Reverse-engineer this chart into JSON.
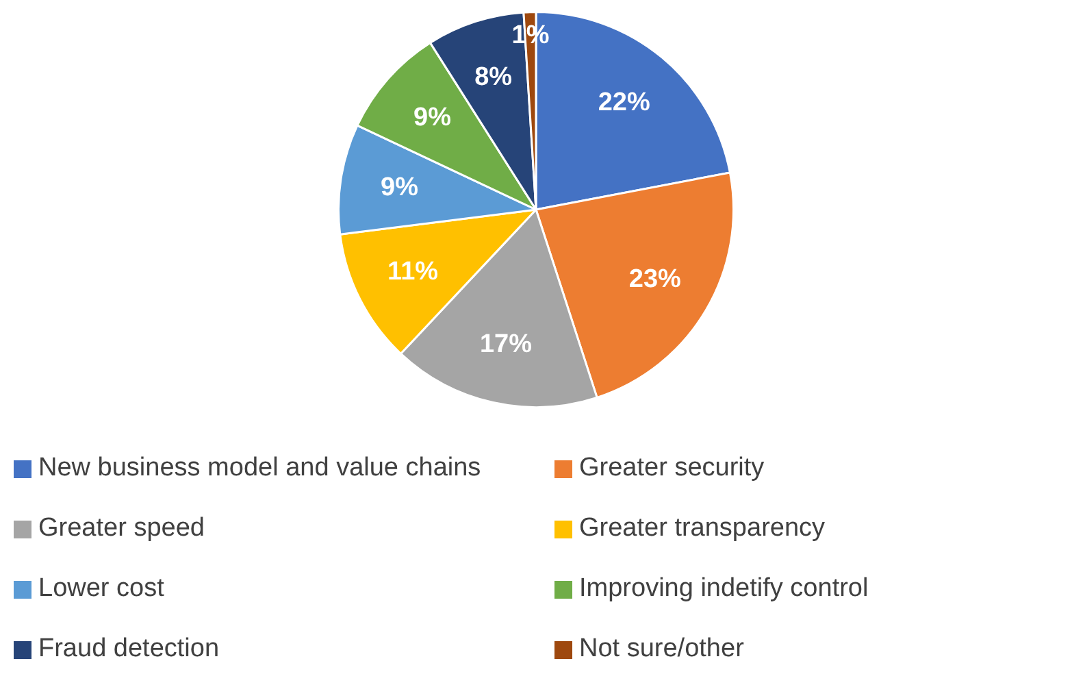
{
  "chart_data": {
    "type": "pie",
    "categories": [
      "New business model and value chains",
      "Greater security",
      "Greater speed",
      "Greater transparency",
      "Lower cost",
      "Improving indetify control",
      "Fraud detection",
      "Not sure/other"
    ],
    "values": [
      22,
      23,
      17,
      11,
      9,
      9,
      8,
      1
    ],
    "colors": [
      "#4472c4",
      "#ed7d31",
      "#a5a5a5",
      "#ffc000",
      "#5b9bd5",
      "#70ad47",
      "#264478",
      "#9e480e"
    ],
    "value_labels": [
      "22%",
      "23%",
      "17%",
      "11%",
      "9%",
      "9%",
      "8%",
      "1%"
    ],
    "legend": "bottom"
  }
}
